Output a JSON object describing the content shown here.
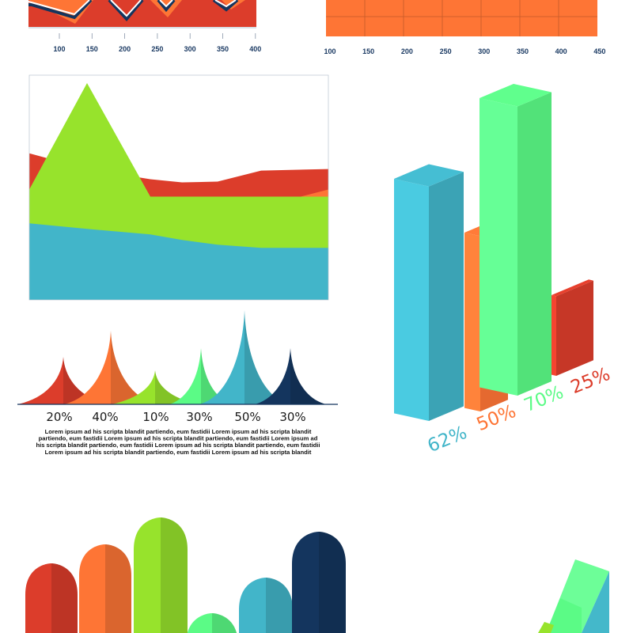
{
  "colors": {
    "red": "#dc3d2b",
    "orange": "#fe7535",
    "lime": "#97e32c",
    "mint": "#5bfb86",
    "teal": "#42b5c9",
    "navy": "#14355e",
    "axis_text": "#1b3a63"
  },
  "chart_data": [
    {
      "id": "top-left-zigzag",
      "type": "area",
      "x_ticks": [
        "100",
        "150",
        "200",
        "250",
        "300",
        "350",
        "400"
      ]
    },
    {
      "id": "top-right-grid",
      "type": "table",
      "x_ticks": [
        "100",
        "150",
        "200",
        "250",
        "300",
        "350",
        "400",
        "450"
      ]
    },
    {
      "id": "stacked-area",
      "type": "area",
      "x": [
        0,
        1,
        2,
        3,
        4,
        5,
        6
      ],
      "series": [
        {
          "name": "teal",
          "color": "teal",
          "values": [
            97,
            90,
            83,
            76,
            70,
            66,
            66
          ]
        },
        {
          "name": "orange",
          "color": "orange",
          "values": [
            140,
            124,
            112,
            100,
            96,
            118,
            140
          ]
        },
        {
          "name": "lime",
          "color": "lime",
          "values": [
            140,
            275,
            131,
            131,
            131,
            131,
            131
          ]
        },
        {
          "name": "red",
          "color": "red",
          "values": [
            186,
            166,
            153,
            149,
            150,
            164,
            166
          ]
        }
      ],
      "ylim": [
        0,
        285
      ]
    },
    {
      "id": "peak-chart",
      "type": "area",
      "categories": [
        "20%",
        "40%",
        "10%",
        "30%",
        "50%",
        "30%"
      ],
      "values": [
        20,
        40,
        10,
        30,
        50,
        30
      ],
      "colors": [
        "red",
        "orange",
        "lime",
        "mint",
        "teal",
        "navy"
      ],
      "caption": [
        "Lorem ipsum ad his scripta blandit partiendo, eum fastidii Lorem ipsum ad his scripta blandit",
        "partiendo, eum fastidii Lorem ipsum ad his scripta blandit partiendo, eum fastidii Lorem ipsum ad",
        "his scripta blandit partiendo, eum fastidii Lorem ipsum ad his scripta blandit partiendo, eum fastidii",
        "Lorem ipsum ad his scripta blandit partiendo, eum fastidii Lorem ipsum ad his scripta blandit"
      ]
    },
    {
      "id": "3d-bars",
      "type": "bar",
      "categories": [
        "62%",
        "50%",
        "70%",
        "25%"
      ],
      "values": [
        62,
        50,
        70,
        25
      ],
      "colors": [
        "teal",
        "orange",
        "mint",
        "red"
      ]
    },
    {
      "id": "rounded-bars",
      "type": "bar",
      "values": [
        88,
        112,
        146,
        25,
        70,
        128
      ],
      "colors": [
        "red",
        "orange",
        "lime",
        "mint",
        "teal",
        "navy"
      ]
    }
  ]
}
